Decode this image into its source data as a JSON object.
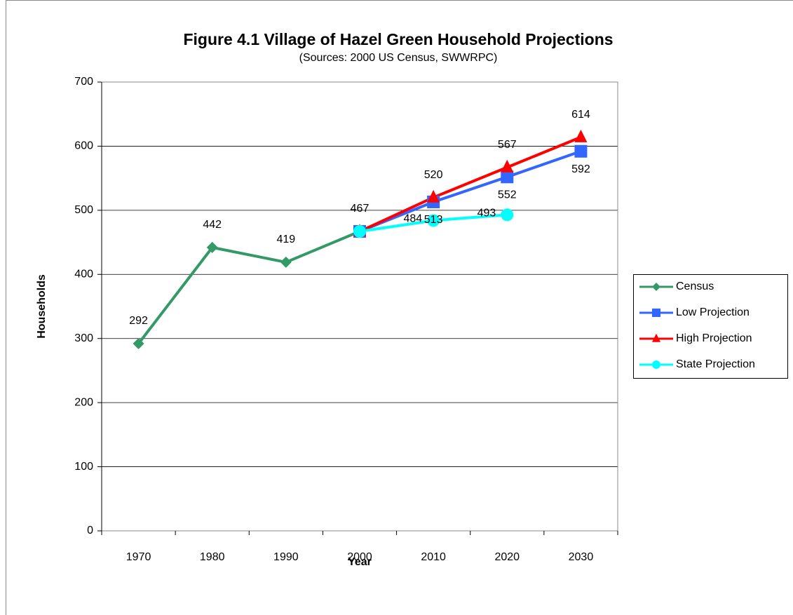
{
  "chart_data": {
    "type": "line",
    "title": "Figure 4.1 Village of Hazel Green Household Projections",
    "subtitle": "(Sources:  2000 US Census, SWWRPC)",
    "x_label": "Year",
    "y_label": "Households",
    "categories": [
      "1970",
      "1980",
      "1990",
      "2000",
      "2010",
      "2020",
      "2030"
    ],
    "series": [
      {
        "name": "Census",
        "color": "#339966",
        "marker": "diamond",
        "values": [
          292,
          442,
          419,
          467,
          null,
          null,
          null
        ]
      },
      {
        "name": "Low Projection",
        "color": "#3366ff",
        "marker": "square",
        "values": [
          null,
          null,
          null,
          467,
          513,
          552,
          592
        ]
      },
      {
        "name": "High Projection",
        "color": "#ff0000",
        "marker": "triangle",
        "values": [
          null,
          null,
          null,
          467,
          520,
          567,
          614
        ]
      },
      {
        "name": "State Projection",
        "color": "#00ffff",
        "marker": "circle",
        "values": [
          null,
          null,
          null,
          467,
          484,
          493,
          null
        ]
      }
    ],
    "ylim": [
      0,
      700
    ],
    "yticks": [
      0,
      100,
      200,
      300,
      400,
      500,
      600,
      700
    ],
    "grid": true,
    "legend": "right"
  }
}
